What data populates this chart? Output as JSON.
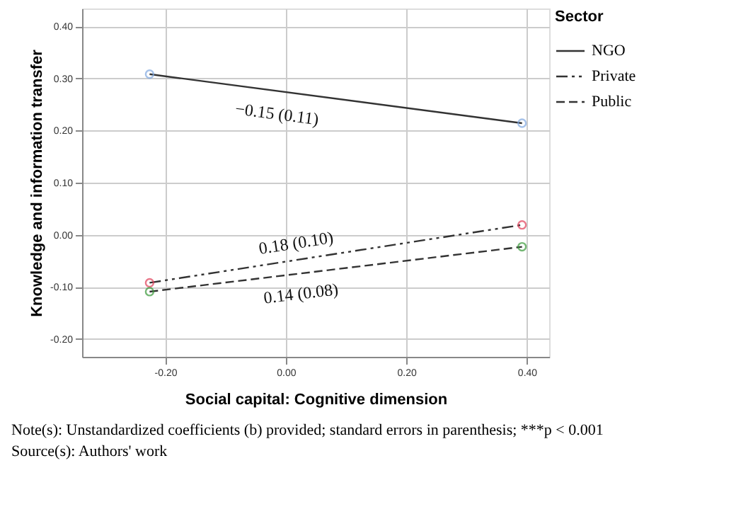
{
  "chart_data": {
    "type": "line",
    "xlabel": "Social capital: Cognitive dimension",
    "ylabel": "Knowledge and information transfer",
    "legend_title": "Sector",
    "xlim": [
      -0.338,
      0.437
    ],
    "xticks": [
      {
        "value": -0.2,
        "label": "-0.20"
      },
      {
        "value": 0,
        "label": "0.00"
      },
      {
        "value": 0.2,
        "label": "0.20"
      },
      {
        "value": 0.4,
        "label": "0.40"
      }
    ],
    "ylim": [
      -0.234,
      0.434
    ],
    "yticks": [
      {
        "value": -0.2,
        "label": "-0.20"
      },
      {
        "value": -0.1,
        "label": "-0.10"
      },
      {
        "value": 0,
        "label": "0.00"
      },
      {
        "value": 0.1,
        "label": "0.10"
      },
      {
        "value": 0.2,
        "label": "0.20"
      },
      {
        "value": 0.3,
        "label": "0.30"
      },
      {
        "value": 0.4,
        "label": "0.40"
      }
    ],
    "x": [
      -0.226,
      0.392
    ],
    "series": [
      {
        "name": "NGO",
        "color": "#333333",
        "colors": [
          "#7fa8e0",
          "#7fa8e0"
        ],
        "line_style": "solid",
        "values": [
          0.308,
          0.214
        ]
      },
      {
        "name": "Private",
        "color": "#333333",
        "colors": [
          "#e0405a",
          "#e0405a"
        ],
        "line_style": "dashdot",
        "values": [
          -0.092,
          0.019
        ]
      },
      {
        "name": "Public",
        "color": "#333333",
        "colors": [
          "#3a9a3a",
          "#3a9a3a"
        ],
        "line_style": "dashed",
        "values": [
          -0.109,
          -0.023
        ]
      }
    ],
    "annotations": [
      "−0.15 (0.11)",
      "0.18 (0.10)",
      "0.14 (0.08)",
      "Note(s): Unstandardized coefficients (b) provided; standard errors in parenthesis; ***p < 0.001",
      "Source(s): Authors' work"
    ],
    "grid": true,
    "legend": "top right",
    "marker": "circle"
  }
}
